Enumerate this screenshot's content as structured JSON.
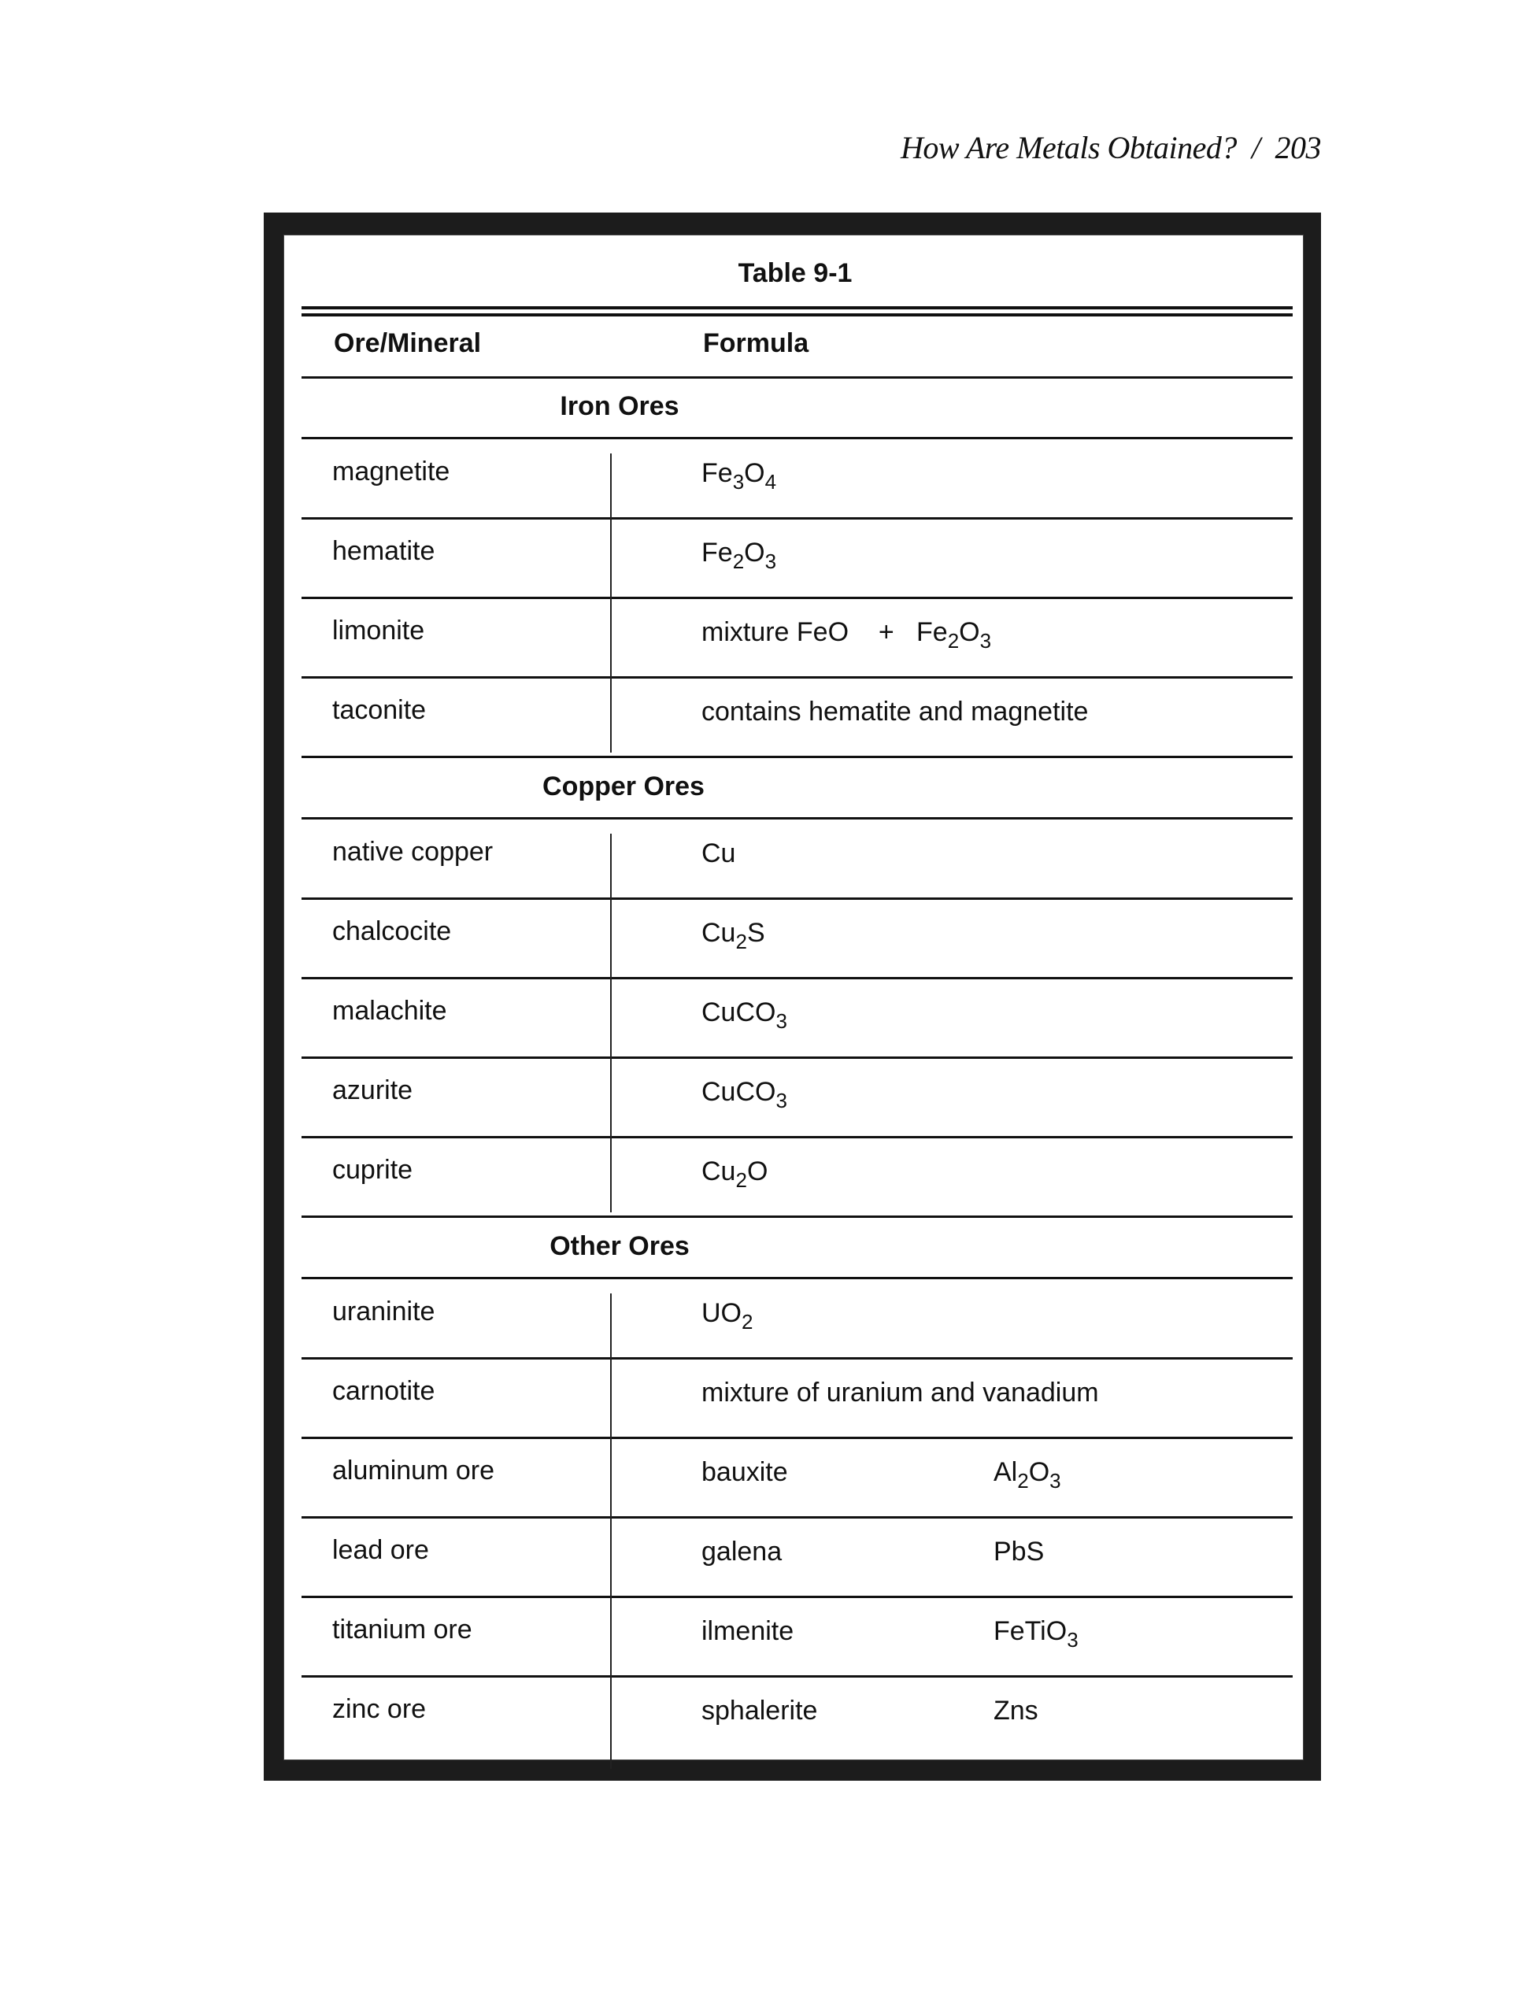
{
  "running_head": "How Are Metals Obtained?  /  203",
  "table": {
    "title": "Table 9-1",
    "columns": [
      "Ore/Mineral",
      "Formula"
    ],
    "sections": [
      {
        "heading": "Iron Ores",
        "rows": [
          {
            "name": "magnetite",
            "formula": [
              {
                "t": "Fe"
              },
              {
                "s": "3"
              },
              {
                "t": "O"
              },
              {
                "s": "4"
              }
            ]
          },
          {
            "name": "hematite",
            "formula": [
              {
                "t": "Fe"
              },
              {
                "s": "2"
              },
              {
                "t": "O"
              },
              {
                "s": "3"
              }
            ]
          },
          {
            "name": "limonite",
            "formula": [
              {
                "t": "mixture FeO    +   Fe"
              },
              {
                "s": "2"
              },
              {
                "t": "O"
              },
              {
                "s": "3"
              }
            ]
          },
          {
            "name": "taconite",
            "formula": [
              {
                "t": "contains hematite and magnetite"
              }
            ]
          }
        ]
      },
      {
        "heading": "Copper Ores",
        "rows": [
          {
            "name": "native copper",
            "formula": [
              {
                "t": "Cu"
              }
            ]
          },
          {
            "name": "chalcocite",
            "formula": [
              {
                "t": "Cu"
              },
              {
                "s": "2"
              },
              {
                "t": "S"
              }
            ]
          },
          {
            "name": "malachite",
            "formula": [
              {
                "t": "CuCO"
              },
              {
                "s": "3"
              }
            ]
          },
          {
            "name": "azurite",
            "formula": [
              {
                "t": "CuCO"
              },
              {
                "s": "3"
              }
            ]
          },
          {
            "name": "cuprite",
            "formula": [
              {
                "t": "Cu"
              },
              {
                "s": "2"
              },
              {
                "t": "O"
              }
            ]
          }
        ]
      },
      {
        "heading": "Other Ores",
        "rows": [
          {
            "name": "uraninite",
            "formula": [
              {
                "t": "UO"
              },
              {
                "s": "2"
              }
            ]
          },
          {
            "name": "carnotite",
            "formula": [
              {
                "t": "mixture of uranium and vanadium"
              }
            ]
          },
          {
            "name": "aluminum ore",
            "mineral": "bauxite",
            "formula": [
              {
                "t": "Al"
              },
              {
                "s": "2"
              },
              {
                "t": "O"
              },
              {
                "s": "3"
              }
            ]
          },
          {
            "name": "lead ore",
            "mineral": "galena",
            "formula": [
              {
                "t": "PbS"
              }
            ]
          },
          {
            "name": "titanium ore",
            "mineral": "ilmenite",
            "formula": [
              {
                "t": "FeTi"
              },
              {
                "t": "O"
              },
              {
                "s": "3"
              }
            ]
          },
          {
            "name": "zinc ore",
            "mineral": "sphalerite",
            "formula": [
              {
                "t": "Zns"
              }
            ]
          }
        ]
      }
    ]
  }
}
